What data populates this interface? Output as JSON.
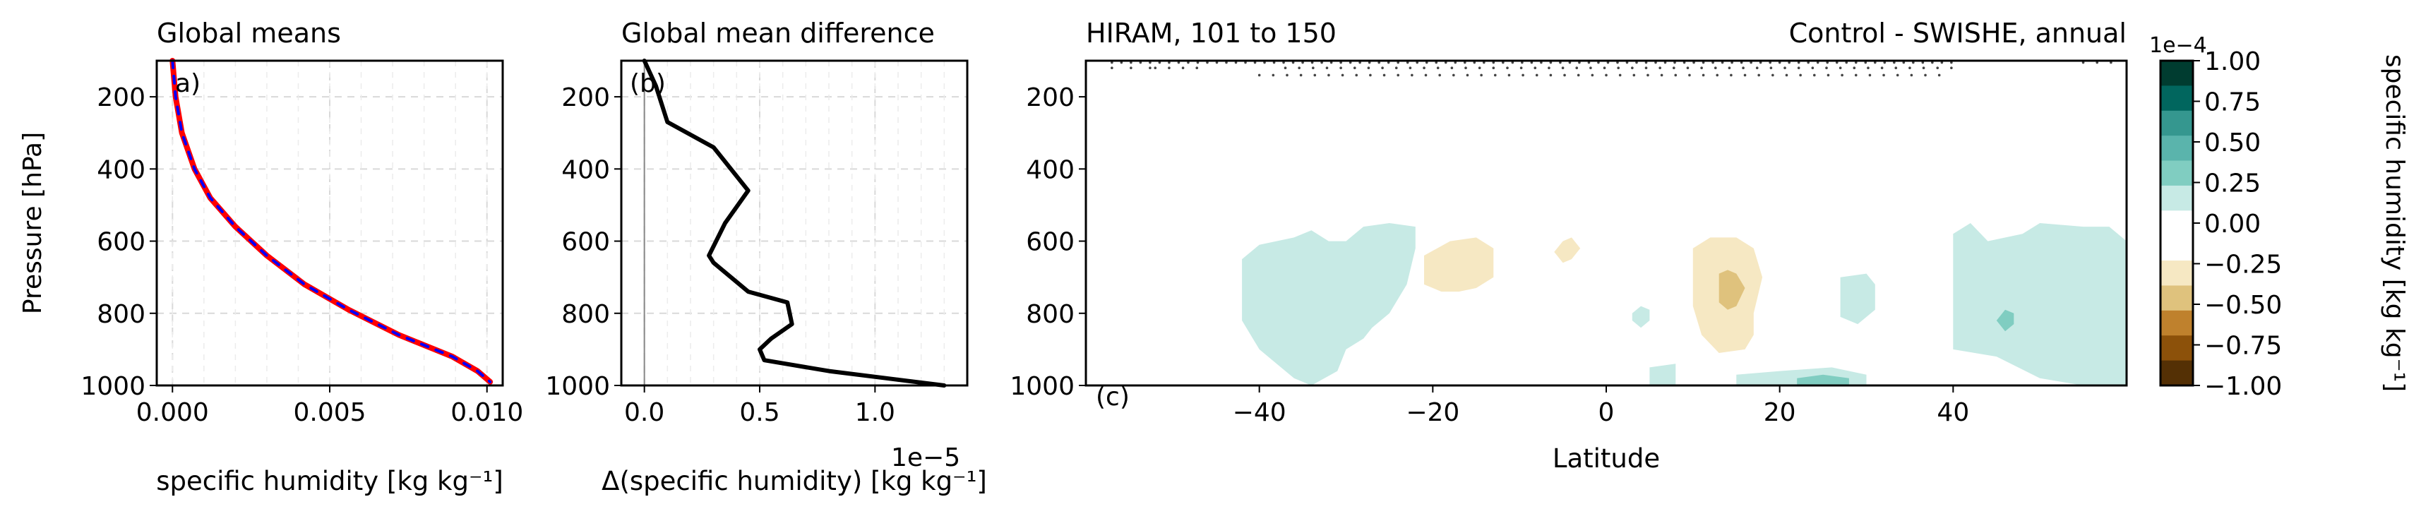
{
  "chart_data": [
    {
      "id": "a",
      "type": "line",
      "title": "Global means",
      "panel_label": "a)",
      "xlabel": "specific humidity [kg kg⁻¹]",
      "ylabel": "Pressure [hPa]",
      "xlim": [
        -0.0005,
        0.0105
      ],
      "ylim": [
        1000,
        100
      ],
      "xticks": [
        "0.000",
        "0.005",
        "0.010"
      ],
      "xtick_values": [
        0.0,
        0.005,
        0.01
      ],
      "yticks": [
        "200",
        "400",
        "600",
        "800",
        "1000"
      ],
      "ytick_values": [
        200,
        400,
        600,
        800,
        1000
      ],
      "grid": true,
      "series": [
        {
          "color": "#ff0000",
          "style": "solid",
          "x": [
            0.0,
            0.0001,
            0.0003,
            0.0007,
            0.0012,
            0.002,
            0.003,
            0.0042,
            0.0056,
            0.0072,
            0.0089,
            0.0097,
            0.0101
          ],
          "y": [
            100,
            200,
            300,
            400,
            480,
            560,
            640,
            720,
            790,
            860,
            920,
            960,
            990
          ]
        },
        {
          "color": "#0000ff",
          "style": "dashed",
          "x": [
            0.0,
            0.0001,
            0.0003,
            0.0007,
            0.0012,
            0.002,
            0.003,
            0.0042,
            0.0056,
            0.0072,
            0.0089,
            0.0097,
            0.0101
          ],
          "y": [
            100,
            200,
            300,
            400,
            480,
            560,
            640,
            720,
            790,
            860,
            920,
            960,
            990
          ]
        }
      ]
    },
    {
      "id": "b",
      "type": "line",
      "title": "Global mean difference",
      "panel_label": "(b)",
      "xlabel": "Δ(specific humidity) [kg kg⁻¹]",
      "offset_text": "1e−5",
      "xlim": [
        -0.1,
        1.4
      ],
      "ylim": [
        1000,
        100
      ],
      "xticks": [
        "0.0",
        "0.5",
        "1.0"
      ],
      "xtick_values": [
        0.0,
        0.5,
        1.0
      ],
      "yticks": [
        "200",
        "400",
        "600",
        "800",
        "1000"
      ],
      "ytick_values": [
        200,
        400,
        600,
        800,
        1000
      ],
      "zero_line": 0,
      "grid": true,
      "series": [
        {
          "color": "#000000",
          "style": "solid",
          "x": [
            0.0,
            0.05,
            0.1,
            0.3,
            0.45,
            0.35,
            0.28,
            0.3,
            0.45,
            0.62,
            0.64,
            0.55,
            0.5,
            0.52,
            0.8,
            1.05,
            1.3
          ],
          "y": [
            100,
            170,
            270,
            340,
            460,
            550,
            640,
            660,
            740,
            770,
            830,
            870,
            900,
            930,
            960,
            980,
            1000
          ]
        }
      ]
    },
    {
      "id": "c",
      "type": "contour",
      "title_left": "HIRAM, 101 to 150",
      "title_right": "Control - SWISHE, annual",
      "panel_label": "(c)",
      "xlabel": "Latitude",
      "xlim": [
        -60,
        60
      ],
      "ylim": [
        1000,
        100
      ],
      "xticks": [
        "−40",
        "−20",
        "0",
        "20",
        "40"
      ],
      "xtick_values": [
        -40,
        -20,
        0,
        20,
        40
      ],
      "yticks": [
        "200",
        "400",
        "600",
        "800",
        "1000"
      ],
      "ytick_values": [
        200,
        400,
        600,
        800,
        1000
      ],
      "colorbar": {
        "label": "specific humidity [kg kg⁻¹]",
        "scale_text": "1e−4",
        "ticks": [
          "1.00",
          "0.75",
          "0.50",
          "0.25",
          "0.00",
          "−0.25",
          "−0.50",
          "−0.75",
          "−1.00"
        ],
        "tick_values": [
          1.0,
          0.75,
          0.5,
          0.25,
          0.0,
          -0.25,
          -0.5,
          -0.75,
          -1.0
        ],
        "levels_colors": [
          "#003c30",
          "#01665e",
          "#35978f",
          "#5ab4ac",
          "#80cdc1",
          "#c7eae5",
          "#ffffff",
          "#ffffff",
          "#f6e8c3",
          "#dfc27d",
          "#bf812d",
          "#8c510a",
          "#543005"
        ]
      },
      "regions": [
        {
          "level": 0.15,
          "color": "#c7eae5",
          "lat": [
            -42,
            -40,
            -36,
            -34,
            -32,
            -30,
            -28,
            -25,
            -22,
            -22,
            -23,
            -25,
            -27,
            -28,
            -30,
            -31,
            -34,
            -36,
            -40,
            -42,
            -42
          ],
          "p": [
            650,
            610,
            590,
            570,
            600,
            600,
            560,
            550,
            560,
            620,
            720,
            800,
            840,
            870,
            900,
            960,
            1000,
            980,
            900,
            820,
            700
          ]
        },
        {
          "level": -0.15,
          "color": "#f6e8c3",
          "lat": [
            -21,
            -18,
            -15,
            -13,
            -13,
            -15,
            -17,
            -19,
            -21,
            -21
          ],
          "p": [
            640,
            600,
            590,
            620,
            700,
            730,
            740,
            740,
            720,
            680
          ]
        },
        {
          "level": -0.15,
          "color": "#f6e8c3",
          "lat": [
            -5,
            -4,
            -3,
            -4,
            -5,
            -6,
            -5
          ],
          "p": [
            600,
            590,
            620,
            650,
            660,
            630,
            600
          ]
        },
        {
          "level": 0.15,
          "color": "#c7eae5",
          "lat": [
            4,
            5,
            5,
            4,
            3,
            3,
            4
          ],
          "p": [
            780,
            790,
            820,
            840,
            820,
            800,
            780
          ]
        },
        {
          "level": -0.15,
          "color": "#f6e8c3",
          "lat": [
            10,
            12,
            15,
            17,
            18,
            17,
            17,
            16,
            13,
            11,
            10,
            10
          ],
          "p": [
            620,
            590,
            590,
            620,
            700,
            800,
            860,
            900,
            910,
            860,
            780,
            700
          ]
        },
        {
          "level": -0.35,
          "color": "#dfc27d",
          "lat": [
            13,
            14,
            15,
            16,
            15,
            14,
            13,
            13
          ],
          "p": [
            690,
            680,
            690,
            730,
            780,
            790,
            770,
            720
          ]
        },
        {
          "level": 0.15,
          "color": "#c7eae5",
          "lat": [
            27,
            30,
            31,
            31,
            29,
            27,
            27
          ],
          "p": [
            700,
            690,
            720,
            790,
            830,
            810,
            750
          ]
        },
        {
          "level": 0.15,
          "color": "#c7eae5",
          "lat": [
            40,
            42,
            44,
            48,
            50,
            55,
            58,
            60,
            60,
            55,
            50,
            45,
            40,
            40
          ],
          "p": [
            580,
            550,
            600,
            580,
            550,
            560,
            560,
            600,
            1000,
            1000,
            980,
            920,
            900,
            700
          ]
        },
        {
          "level": 0.35,
          "color": "#80cdc1",
          "lat": [
            46,
            47,
            47,
            46,
            45,
            46
          ],
          "p": [
            790,
            800,
            830,
            850,
            820,
            790
          ]
        },
        {
          "level": 0.15,
          "color": "#c7eae5",
          "lat": [
            5,
            8,
            8,
            5,
            5
          ],
          "p": [
            950,
            940,
            1000,
            1000,
            960
          ]
        },
        {
          "level": 0.15,
          "color": "#c7eae5",
          "lat": [
            15,
            20,
            26,
            30,
            30,
            15,
            15
          ],
          "p": [
            970,
            960,
            950,
            970,
            1000,
            1000,
            980
          ]
        },
        {
          "level": 0.35,
          "color": "#80cdc1",
          "lat": [
            22,
            25,
            28,
            28,
            22
          ],
          "p": [
            980,
            970,
            980,
            1000,
            1000
          ]
        }
      ]
    }
  ]
}
